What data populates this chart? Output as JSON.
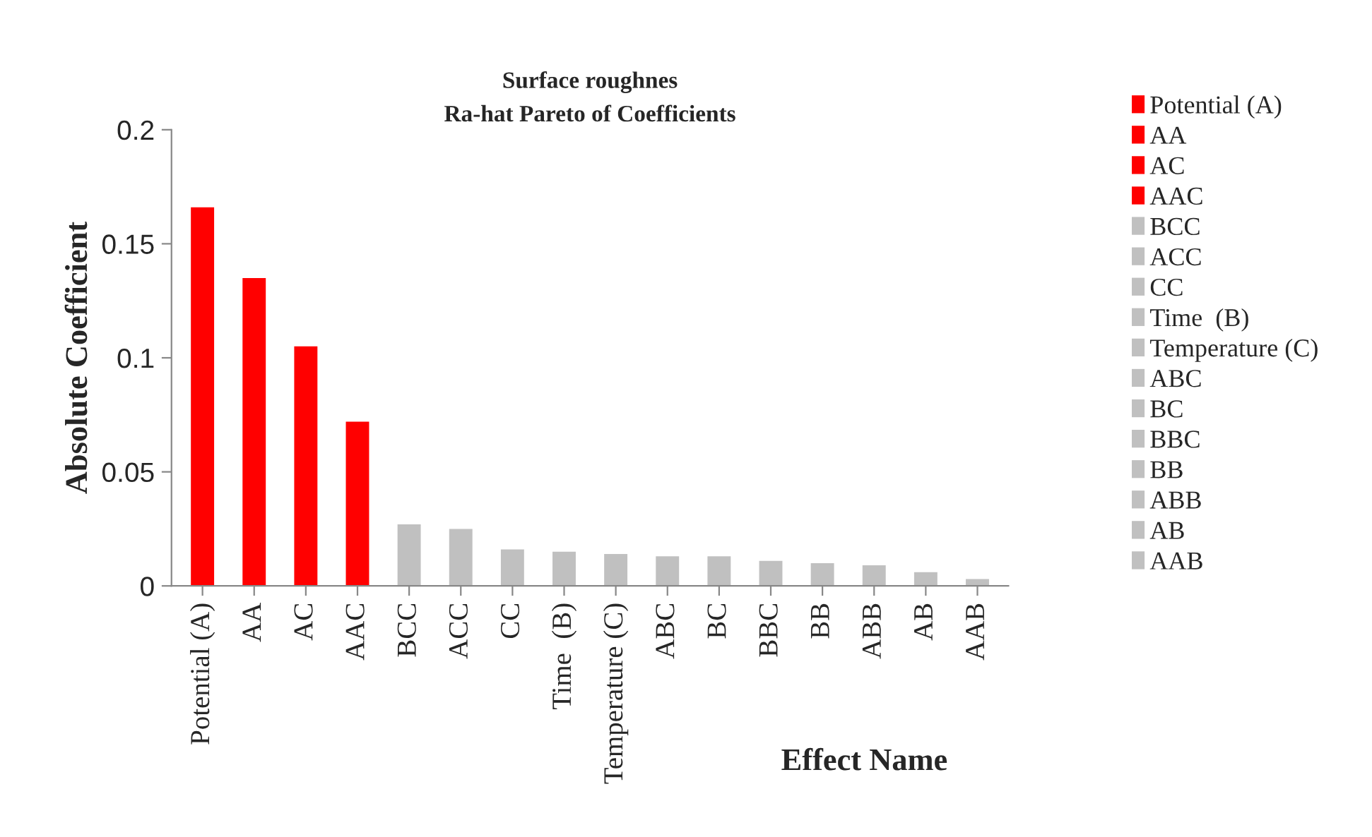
{
  "chart_data": {
    "type": "bar",
    "title": "Surface roughnes",
    "subtitle": "Ra-hat Pareto of Coefficients",
    "xlabel": "Effect Name",
    "ylabel": "Absolute Coefficient",
    "categories": [
      "Potential (A)",
      "AA",
      "AC",
      "AAC",
      "BCC",
      "ACC",
      "CC",
      "Time  (B)",
      "Temperature (C)",
      "ABC",
      "BC",
      "BBC",
      "BB",
      "ABB",
      "AB",
      "AAB"
    ],
    "series": [
      {
        "name": "Potential (A)",
        "color": "#ff0000",
        "values": [
          0.166,
          null,
          null,
          null,
          null,
          null,
          null,
          null,
          null,
          null,
          null,
          null,
          null,
          null,
          null,
          null
        ]
      },
      {
        "name": "AA",
        "color": "#ff0000",
        "values": [
          null,
          0.135,
          null,
          null,
          null,
          null,
          null,
          null,
          null,
          null,
          null,
          null,
          null,
          null,
          null,
          null
        ]
      },
      {
        "name": "AC",
        "color": "#ff0000",
        "values": [
          null,
          null,
          0.105,
          null,
          null,
          null,
          null,
          null,
          null,
          null,
          null,
          null,
          null,
          null,
          null,
          null
        ]
      },
      {
        "name": "AAC",
        "color": "#ff0000",
        "values": [
          null,
          null,
          null,
          0.072,
          null,
          null,
          null,
          null,
          null,
          null,
          null,
          null,
          null,
          null,
          null,
          null
        ]
      },
      {
        "name": "BCC",
        "color": "#c0c0c0",
        "values": [
          null,
          null,
          null,
          null,
          0.027,
          null,
          null,
          null,
          null,
          null,
          null,
          null,
          null,
          null,
          null,
          null
        ]
      },
      {
        "name": "ACC",
        "color": "#c0c0c0",
        "values": [
          null,
          null,
          null,
          null,
          null,
          0.025,
          null,
          null,
          null,
          null,
          null,
          null,
          null,
          null,
          null,
          null
        ]
      },
      {
        "name": "CC",
        "color": "#c0c0c0",
        "values": [
          null,
          null,
          null,
          null,
          null,
          null,
          0.016,
          null,
          null,
          null,
          null,
          null,
          null,
          null,
          null,
          null
        ]
      },
      {
        "name": "Time  (B)",
        "color": "#c0c0c0",
        "values": [
          null,
          null,
          null,
          null,
          null,
          null,
          null,
          0.015,
          null,
          null,
          null,
          null,
          null,
          null,
          null,
          null
        ]
      },
      {
        "name": "Temperature (C)",
        "color": "#c0c0c0",
        "values": [
          null,
          null,
          null,
          null,
          null,
          null,
          null,
          null,
          0.014,
          null,
          null,
          null,
          null,
          null,
          null,
          null
        ]
      },
      {
        "name": "ABC",
        "color": "#c0c0c0",
        "values": [
          null,
          null,
          null,
          null,
          null,
          null,
          null,
          null,
          null,
          0.013,
          null,
          null,
          null,
          null,
          null,
          null
        ]
      },
      {
        "name": "BC",
        "color": "#c0c0c0",
        "values": [
          null,
          null,
          null,
          null,
          null,
          null,
          null,
          null,
          null,
          null,
          0.013,
          null,
          null,
          null,
          null,
          null
        ]
      },
      {
        "name": "BBC",
        "color": "#c0c0c0",
        "values": [
          null,
          null,
          null,
          null,
          null,
          null,
          null,
          null,
          null,
          null,
          null,
          0.011,
          null,
          null,
          null,
          null
        ]
      },
      {
        "name": "BB",
        "color": "#c0c0c0",
        "values": [
          null,
          null,
          null,
          null,
          null,
          null,
          null,
          null,
          null,
          null,
          null,
          null,
          0.01,
          null,
          null,
          null
        ]
      },
      {
        "name": "ABB",
        "color": "#c0c0c0",
        "values": [
          null,
          null,
          null,
          null,
          null,
          null,
          null,
          null,
          null,
          null,
          null,
          null,
          null,
          0.009,
          null,
          null
        ]
      },
      {
        "name": "AB",
        "color": "#c0c0c0",
        "values": [
          null,
          null,
          null,
          null,
          null,
          null,
          null,
          null,
          null,
          null,
          null,
          null,
          null,
          null,
          0.006,
          null
        ]
      },
      {
        "name": "AAB",
        "color": "#c0c0c0",
        "values": [
          null,
          null,
          null,
          null,
          null,
          null,
          null,
          null,
          null,
          null,
          null,
          null,
          null,
          null,
          null,
          0.003
        ]
      }
    ],
    "ylim": [
      0,
      0.2
    ],
    "yticks": [
      {
        "value": 0,
        "label": "0"
      },
      0.05,
      0.1,
      0.15,
      0.2
    ],
    "grid": false,
    "legend": "right"
  }
}
